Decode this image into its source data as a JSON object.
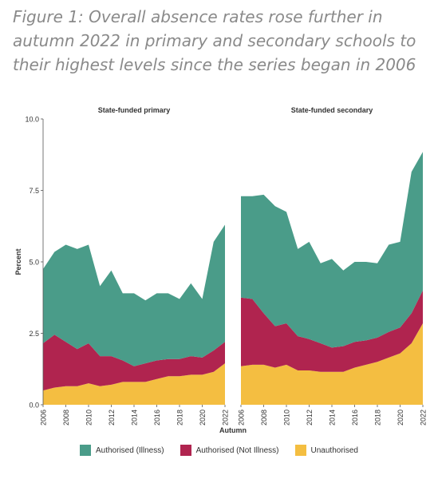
{
  "figure_title": "Figure 1: Overall absence rates rose further in autumn 2022 in primary and secondary schools to their highest levels since the series began in 2006",
  "colors": {
    "illness": "#4a9c89",
    "not_illness": "#b0244f",
    "unauthorised": "#f4be41",
    "axis": "#555555",
    "text": "#333333"
  },
  "chart_data": [
    {
      "type": "area",
      "stacked": true,
      "title": "State-funded primary",
      "xlabel": "Autumn",
      "ylabel": "Percent",
      "ylim": [
        0,
        10
      ],
      "yticks": [
        "0.0",
        "2.5",
        "5.0",
        "7.5",
        "10.0"
      ],
      "x": [
        2006,
        2007,
        2008,
        2009,
        2010,
        2011,
        2012,
        2013,
        2014,
        2015,
        2016,
        2017,
        2018,
        2019,
        2020,
        2021,
        2022
      ],
      "xticks": [
        "2006",
        "2008",
        "2010",
        "2012",
        "2014",
        "2016",
        "2018",
        "2020",
        "2022"
      ],
      "gaps": [],
      "series": [
        {
          "name": "Unauthorised",
          "key": "unauthorised",
          "values": [
            0.5,
            0.6,
            0.65,
            0.65,
            0.75,
            0.65,
            0.7,
            0.8,
            0.8,
            0.8,
            0.9,
            1.0,
            1.0,
            1.05,
            1.05,
            1.15,
            1.45
          ]
        },
        {
          "name": "Authorised (Not Illness)",
          "key": "not_illness",
          "values": [
            1.65,
            1.85,
            1.55,
            1.3,
            1.4,
            1.05,
            1.0,
            0.75,
            0.55,
            0.65,
            0.65,
            0.6,
            0.6,
            0.65,
            0.6,
            0.75,
            0.75
          ]
        },
        {
          "name": "Authorised (Illness)",
          "key": "illness",
          "values": [
            2.6,
            2.9,
            3.4,
            3.5,
            3.45,
            2.45,
            3.0,
            2.35,
            2.55,
            2.2,
            2.35,
            2.3,
            2.1,
            2.55,
            2.05,
            3.8,
            4.1
          ]
        }
      ]
    },
    {
      "type": "area",
      "stacked": true,
      "title": "State-funded secondary",
      "xlabel": "Autumn",
      "ylabel": "Percent",
      "ylim": [
        0,
        10
      ],
      "yticks": [
        "0.0",
        "2.5",
        "5.0",
        "7.5",
        "10.0"
      ],
      "x": [
        2006,
        2007,
        2008,
        2009,
        2010,
        2011,
        2012,
        2013,
        2014,
        2015,
        2016,
        2017,
        2018,
        2019,
        2020,
        2021,
        2022
      ],
      "xticks": [
        "2006",
        "2008",
        "2010",
        "2012",
        "2014",
        "2016",
        "2018",
        "2020",
        "2022"
      ],
      "gaps": [],
      "series": [
        {
          "name": "Unauthorised",
          "key": "unauthorised",
          "values": [
            1.35,
            1.4,
            1.4,
            1.3,
            1.4,
            1.2,
            1.2,
            1.15,
            1.15,
            1.15,
            1.3,
            1.4,
            1.5,
            1.65,
            1.8,
            2.15,
            2.85
          ]
        },
        {
          "name": "Authorised (Not Illness)",
          "key": "not_illness",
          "values": [
            2.4,
            2.3,
            1.8,
            1.45,
            1.45,
            1.2,
            1.1,
            1.0,
            0.85,
            0.9,
            0.9,
            0.85,
            0.85,
            0.9,
            0.9,
            1.05,
            1.15
          ]
        },
        {
          "name": "Authorised (Illness)",
          "key": "illness",
          "values": [
            3.55,
            3.6,
            4.15,
            4.2,
            3.9,
            3.05,
            3.4,
            2.8,
            3.1,
            2.65,
            2.8,
            2.75,
            2.6,
            3.05,
            3.0,
            4.95,
            4.85
          ]
        }
      ]
    }
  ],
  "legend": {
    "items": [
      {
        "label": "Authorised (Illness)",
        "key": "illness"
      },
      {
        "label": "Authorised (Not Illness)",
        "key": "not_illness"
      },
      {
        "label": "Unauthorised",
        "key": "unauthorised"
      }
    ]
  }
}
